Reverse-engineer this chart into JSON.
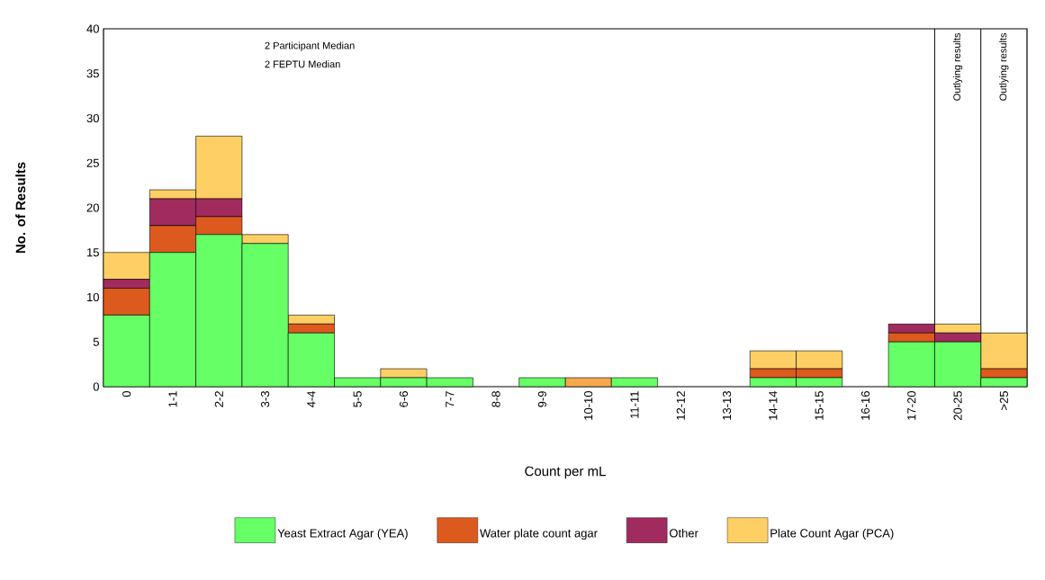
{
  "chart_data": {
    "type": "bar",
    "stacked": true,
    "categories": [
      "0",
      "1-1",
      "2-2",
      "3-3",
      "4-4",
      "5-5",
      "6-6",
      "7-7",
      "8-8",
      "9-9",
      "10-10",
      "11-11",
      "12-12",
      "13-13",
      "14-14",
      "15-15",
      "16-16",
      "17-20",
      "20-25",
      ">25"
    ],
    "series": [
      {
        "name": "Yeast Extract Agar (YEA)",
        "color": "#66ff66",
        "values": [
          8,
          15,
          17,
          16,
          6,
          1,
          1,
          1,
          0,
          1,
          0,
          1,
          0,
          0,
          1,
          1,
          0,
          5,
          5,
          1
        ]
      },
      {
        "name": "Water plate count agar",
        "color": "#dd5a1e",
        "values": [
          3,
          3,
          2,
          0,
          1,
          0,
          0,
          0,
          0,
          0,
          0,
          0,
          0,
          0,
          1,
          1,
          0,
          1,
          0,
          1
        ]
      },
      {
        "color": "#f5a84e",
        "values": [
          0,
          0,
          0,
          0,
          0,
          0,
          0,
          0,
          0,
          0,
          1,
          0,
          0,
          0,
          0,
          0,
          0,
          0,
          0,
          0
        ]
      },
      {
        "name": "Other",
        "color": "#a12b5e",
        "values": [
          1,
          3,
          2,
          0,
          0,
          0,
          0,
          0,
          0,
          0,
          0,
          0,
          0,
          0,
          0,
          0,
          0,
          1,
          1,
          0
        ]
      },
      {
        "name": "Plate Count Agar (PCA)",
        "color": "#fdcf64",
        "values": [
          3,
          1,
          7,
          1,
          1,
          0,
          1,
          0,
          0,
          0,
          0,
          0,
          0,
          0,
          2,
          2,
          0,
          0,
          1,
          4
        ]
      }
    ],
    "xlabel": "Count per mL",
    "ylabel": "No. of Results",
    "ylim": [
      0,
      40
    ],
    "yticks": [
      0,
      5,
      10,
      15,
      20,
      25,
      30,
      35,
      40
    ],
    "annotations": [
      "2 Participant Median",
      "2 FEPTU Median",
      "Outlying results",
      "Outlying results"
    ],
    "legend": "bottom",
    "grid": false
  }
}
